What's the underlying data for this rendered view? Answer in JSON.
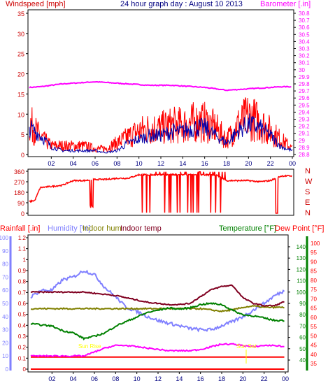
{
  "header": {
    "windspeed_label": "Windspeed [mph]",
    "title": "24 hour graph day : August 10 2013",
    "barometer_label": "Barometer [.in]"
  },
  "colors": {
    "frame": "#000000",
    "windspeed": "#ff0000",
    "gust_avg": "#0000aa",
    "barometer": "#ff00ff",
    "direction": "#ff0000",
    "rainfall": "#ff0000",
    "humidity": "#8080ff",
    "indoor_hum": "#808000",
    "indoor_temp": "#800020",
    "temperature": "#008000",
    "dew_point": "#ff0000",
    "solar": "#ff00ff",
    "sun_marker": "#ffff00"
  },
  "chart_data": [
    {
      "type": "line",
      "panel": "wind-barometer",
      "title": "24 hour graph day : August 10 2013",
      "left_axis": {
        "label": "Windspeed [mph]",
        "ylim": [
          0,
          35
        ],
        "ticks": [
          "0",
          "5",
          "10",
          "15",
          "20",
          "25",
          "30",
          "35"
        ]
      },
      "right_axis": {
        "label": "Barometer [.in]",
        "ylim": [
          28.8,
          30.8
        ],
        "ticks": [
          "28.8",
          "28.9",
          "29",
          "29.1",
          "29.2",
          "29.3",
          "29.4",
          "29.5",
          "29.6",
          "29.7",
          "29.8",
          "29.9",
          "30",
          "30.1",
          "30.2",
          "30.3",
          "30.4",
          "30.5",
          "30.6",
          "30.7",
          "30.8"
        ]
      },
      "x_ticks": [
        "02",
        "04",
        "06",
        "08",
        "10",
        "12",
        "14",
        "16",
        "18",
        "20",
        "22",
        "00"
      ],
      "grid": false,
      "series": [
        {
          "name": "Windspeed",
          "axis": "left",
          "x": [
            0,
            1,
            2,
            3,
            4,
            5,
            6,
            7,
            8,
            9,
            10,
            11,
            12,
            13,
            14,
            15,
            16,
            17,
            18,
            19,
            20,
            21,
            22,
            23,
            24
          ],
          "values": [
            7,
            5,
            2,
            1,
            1,
            1,
            1,
            0.5,
            1,
            3,
            4,
            5,
            5,
            6,
            6,
            7,
            7,
            5,
            3,
            6,
            8,
            7,
            5,
            2,
            1
          ]
        },
        {
          "name": "Gust",
          "axis": "left",
          "x": [
            0,
            1,
            2,
            3,
            4,
            5,
            6,
            7,
            8,
            9,
            10,
            11,
            12,
            13,
            14,
            15,
            16,
            17,
            18,
            19,
            20,
            21,
            22,
            23,
            24
          ],
          "values": [
            11,
            6,
            3,
            3,
            3,
            3,
            2,
            2,
            4,
            6,
            8,
            9,
            9,
            10,
            10,
            11,
            11,
            9,
            5,
            10,
            13,
            11,
            8,
            5,
            2
          ]
        },
        {
          "name": "Barometer",
          "axis": "right",
          "x": [
            0,
            1,
            2,
            3,
            4,
            5,
            6,
            7,
            8,
            9,
            10,
            11,
            12,
            13,
            14,
            15,
            16,
            17,
            18,
            19,
            20,
            21,
            22,
            23,
            24
          ],
          "values": [
            29.75,
            29.76,
            29.78,
            29.8,
            29.81,
            29.82,
            29.83,
            29.82,
            29.81,
            29.8,
            29.79,
            29.78,
            29.78,
            29.78,
            29.77,
            29.76,
            29.75,
            29.73,
            29.71,
            29.72,
            29.73,
            29.74,
            29.75,
            29.76,
            29.76
          ]
        }
      ]
    },
    {
      "type": "line",
      "panel": "wind-direction",
      "left_axis": {
        "ylim": [
          0,
          360
        ],
        "ticks": [
          "0",
          "90",
          "180",
          "270",
          "360"
        ]
      },
      "right_axis": {
        "ticks": [
          "N",
          "W",
          "S",
          "E",
          "N"
        ]
      },
      "series": [
        {
          "name": "Direction",
          "x": [
            0,
            0.5,
            1,
            2,
            3,
            4,
            5,
            6,
            7,
            8,
            9,
            10,
            11,
            12,
            13,
            14,
            15,
            16,
            17,
            18,
            19,
            20,
            21,
            22,
            23,
            24
          ],
          "values": [
            100,
            110,
            220,
            230,
            240,
            280,
            280,
            290,
            290,
            300,
            300,
            330,
            330,
            330,
            330,
            330,
            330,
            330,
            330,
            280,
            280,
            280,
            270,
            280,
            320,
            320
          ]
        }
      ]
    },
    {
      "type": "line",
      "panel": "temperature-humidity-rain",
      "legend": [
        "Rainfall [.in]",
        "Humidity [%]",
        "Indoor hum",
        "Indoor temp",
        "Temperature [°F]",
        "Dew Point [°F]"
      ],
      "axes": {
        "humidity": {
          "label": "Humidity [%]",
          "ticks": [
            "0",
            "10",
            "20",
            "30",
            "40",
            "50",
            "60",
            "70",
            "80",
            "90",
            "100"
          ],
          "ylim": [
            0,
            100
          ]
        },
        "rainfall": {
          "label": "Rainfall [.in]",
          "ticks": [
            "0",
            "0.1",
            "0.2",
            "0.3",
            "0.4",
            "0.5",
            "0.6",
            "0.7",
            "0.8",
            "0.9",
            "1",
            "1.1",
            "1.2"
          ],
          "ylim": [
            0,
            1.2
          ]
        },
        "temperature": {
          "label": "Temperature [°F]",
          "ticks": [
            "40",
            "50",
            "60",
            "70",
            "80",
            "90",
            "100",
            "110",
            "120",
            "130",
            "140"
          ],
          "ylim": [
            32,
            148
          ]
        },
        "dew_point": {
          "label": "Dew Point [°F]",
          "ticks": [
            "35",
            "40",
            "45",
            "50",
            "55",
            "60",
            "65",
            "70",
            "75",
            "80",
            "85",
            "90",
            "95",
            "100"
          ],
          "ylim": [
            32,
            103
          ]
        }
      },
      "x_ticks": [
        "02",
        "04",
        "06",
        "08",
        "10",
        "12",
        "14",
        "16",
        "18",
        "20",
        "22",
        "00"
      ],
      "annotations": [
        "Sun Rise",
        "Sun Set"
      ],
      "series": [
        {
          "name": "Humidity",
          "axis": "humidity",
          "x": [
            0,
            1,
            2,
            3,
            4,
            5,
            6,
            7,
            8,
            9,
            10,
            11,
            12,
            13,
            14,
            15,
            16,
            17,
            18,
            19,
            20,
            21,
            22,
            23,
            24
          ],
          "values": [
            55,
            60,
            60,
            68,
            70,
            75,
            72,
            62,
            55,
            47,
            44,
            40,
            37,
            35,
            33,
            31,
            30,
            30,
            33,
            36,
            40,
            45,
            50,
            56,
            60
          ]
        },
        {
          "name": "Indoor hum",
          "axis": "humidity",
          "x": [
            0,
            1,
            2,
            3,
            4,
            5,
            6,
            7,
            8,
            9,
            10,
            11,
            12,
            13,
            14,
            15,
            16,
            17,
            18,
            19,
            20,
            21,
            22,
            23,
            24
          ],
          "values": [
            46,
            46,
            46,
            46,
            46,
            46,
            46,
            46,
            46,
            46,
            46,
            46,
            46,
            46,
            46,
            46,
            46,
            45,
            44,
            45,
            47,
            48,
            47,
            47,
            47
          ]
        },
        {
          "name": "Indoor temp",
          "axis": "temperature",
          "x": [
            0,
            1,
            2,
            3,
            4,
            5,
            6,
            7,
            8,
            9,
            10,
            11,
            12,
            13,
            14,
            15,
            16,
            17,
            18,
            19,
            20,
            21,
            22,
            23,
            24
          ],
          "values": [
            100,
            100,
            100,
            100,
            100,
            100,
            99,
            98,
            97,
            95,
            93,
            91,
            90,
            89,
            89,
            90,
            96,
            102,
            105,
            106,
            95,
            90,
            88,
            88,
            92
          ]
        },
        {
          "name": "Temperature",
          "axis": "temperature",
          "x": [
            0,
            1,
            2,
            3,
            4,
            5,
            6,
            7,
            8,
            9,
            10,
            11,
            12,
            13,
            14,
            15,
            16,
            17,
            18,
            19,
            20,
            21,
            22,
            23,
            24
          ],
          "values": [
            72,
            71,
            70,
            66,
            64,
            59,
            61,
            64,
            70,
            74,
            78,
            82,
            84,
            86,
            85,
            86,
            89,
            90,
            89,
            84,
            80,
            79,
            77,
            75,
            75
          ]
        },
        {
          "name": "Dew Point",
          "axis": "dew_point",
          "x": [
            0,
            1,
            2,
            3,
            4,
            5,
            6,
            7,
            8,
            9,
            10,
            11,
            12,
            13,
            14,
            15,
            16,
            17,
            18,
            19,
            20,
            21,
            22,
            23,
            24
          ],
          "values": [
            38.5,
            38.5,
            38.5,
            38.5,
            38.5,
            38.5,
            38.5,
            38.5,
            38.5,
            38.5,
            38.5,
            38.5,
            38.5,
            38.5,
            38.5,
            38.5,
            38.5,
            38.5,
            38.5,
            38.5,
            38.5,
            38.5,
            38.5,
            38.5,
            38.5
          ]
        },
        {
          "name": "Rainfall",
          "axis": "rainfall",
          "x": [
            0,
            24
          ],
          "values": [
            0,
            0
          ]
        },
        {
          "name": "Solar",
          "axis": "humidity",
          "x": [
            0,
            1,
            2,
            3,
            4,
            5,
            6,
            7,
            8,
            9,
            10,
            11,
            12,
            13,
            14,
            15,
            16,
            17,
            18,
            19,
            20,
            21,
            22,
            23,
            24
          ],
          "values": [
            10,
            10,
            10,
            10,
            10,
            10,
            13,
            16,
            18,
            18,
            17,
            16,
            15,
            14,
            14,
            14,
            15,
            17,
            19,
            19,
            18,
            17,
            18,
            18,
            17
          ]
        }
      ]
    }
  ]
}
